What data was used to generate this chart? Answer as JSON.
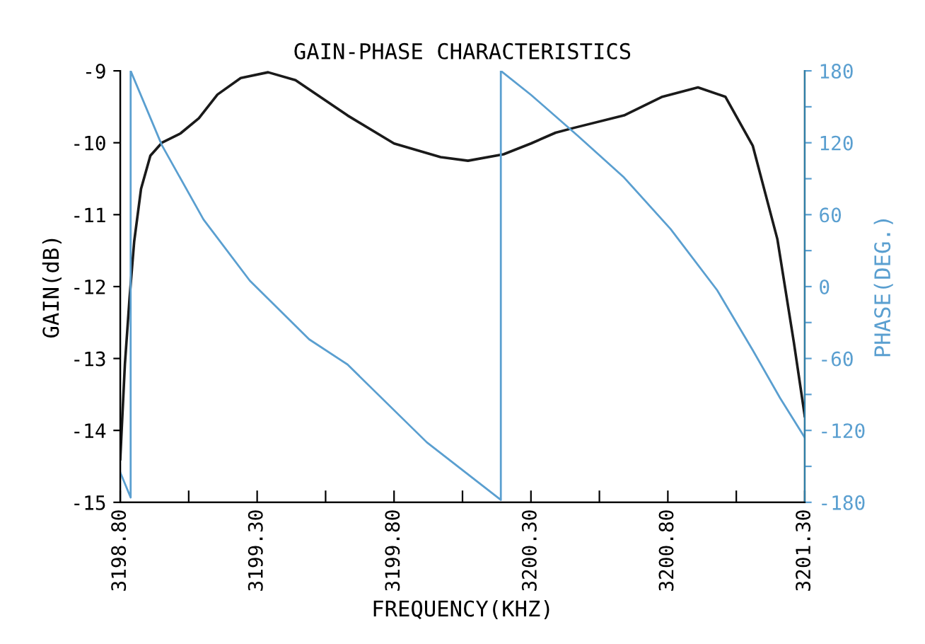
{
  "chart_data": {
    "type": "line",
    "title": "GAIN-PHASE CHARACTERISTICS",
    "xlabel": "FREQUENCY(KHZ)",
    "ylabel": "GAIN(dB)",
    "y2label": "PHASE(DEG.)",
    "xlim": [
      3198.8,
      3201.3
    ],
    "xticks": [
      {
        "value": 3198.8,
        "label": "3198.80"
      },
      {
        "value": 3199.05,
        "label": null
      },
      {
        "value": 3199.3,
        "label": "3199.30"
      },
      {
        "value": 3199.55,
        "label": null
      },
      {
        "value": 3199.8,
        "label": "3199.80"
      },
      {
        "value": 3200.05,
        "label": null
      },
      {
        "value": 3200.3,
        "label": "3200.30"
      },
      {
        "value": 3200.55,
        "label": null
      },
      {
        "value": 3200.8,
        "label": "3200.80"
      },
      {
        "value": 3201.05,
        "label": null
      },
      {
        "value": 3201.3,
        "label": "3201.30"
      }
    ],
    "ylim": [
      -15,
      -9
    ],
    "yticks": [
      -15,
      -14,
      -13,
      -12,
      -11,
      -10,
      -9
    ],
    "y2lim": [
      -180,
      180
    ],
    "y2ticks": [
      -180,
      {
        "value": -150,
        "label": null
      },
      -120,
      {
        "value": -90,
        "label": null
      },
      -60,
      {
        "value": -30,
        "label": null
      },
      0,
      {
        "value": 30,
        "label": null
      },
      60,
      {
        "value": 90,
        "label": null
      },
      120,
      {
        "value": 150,
        "label": null
      },
      180
    ],
    "grid": false,
    "legend": false,
    "marker": "none",
    "line_style": "solid",
    "series": [
      {
        "color": "#1a1a1a",
        "x": [
          3198.8,
          3198.817,
          3198.834,
          3198.851,
          3198.876,
          3198.91,
          3198.952,
          3199.02,
          3199.087,
          3199.155,
          3199.24,
          3199.34,
          3199.44,
          3199.63,
          3199.8,
          3199.97,
          3200.07,
          3200.2,
          3200.3,
          3200.39,
          3200.46,
          3200.64,
          3200.78,
          3200.91,
          3201.01,
          3201.11,
          3201.2,
          3201.26,
          3201.3
        ],
        "values": [
          -14.4,
          -13.08,
          -12.16,
          -11.37,
          -10.64,
          -10.18,
          -10.0,
          -9.87,
          -9.66,
          -9.33,
          -9.1,
          -9.02,
          -9.13,
          -9.62,
          -10.01,
          -10.2,
          -10.25,
          -10.16,
          -10.01,
          -9.86,
          -9.79,
          -9.62,
          -9.36,
          -9.23,
          -9.36,
          -10.04,
          -11.34,
          -12.77,
          -13.8
        ]
      },
      {
        "color": "#5a9fd0",
        "axis": "y2",
        "x": [
          3198.8,
          3198.838,
          3198.838,
          3198.952,
          3199.104,
          3199.273,
          3199.49,
          3199.63,
          3199.92,
          3200.19,
          3200.19,
          3200.3,
          3200.47,
          3200.64,
          3200.81,
          3200.98,
          3201.11,
          3201.21,
          3201.3
        ],
        "values": [
          -155,
          -176,
          180,
          118,
          56,
          5,
          -44,
          -65,
          -130,
          -178,
          180,
          160,
          126,
          91,
          48,
          -3,
          -53,
          -93,
          -126
        ]
      }
    ]
  }
}
